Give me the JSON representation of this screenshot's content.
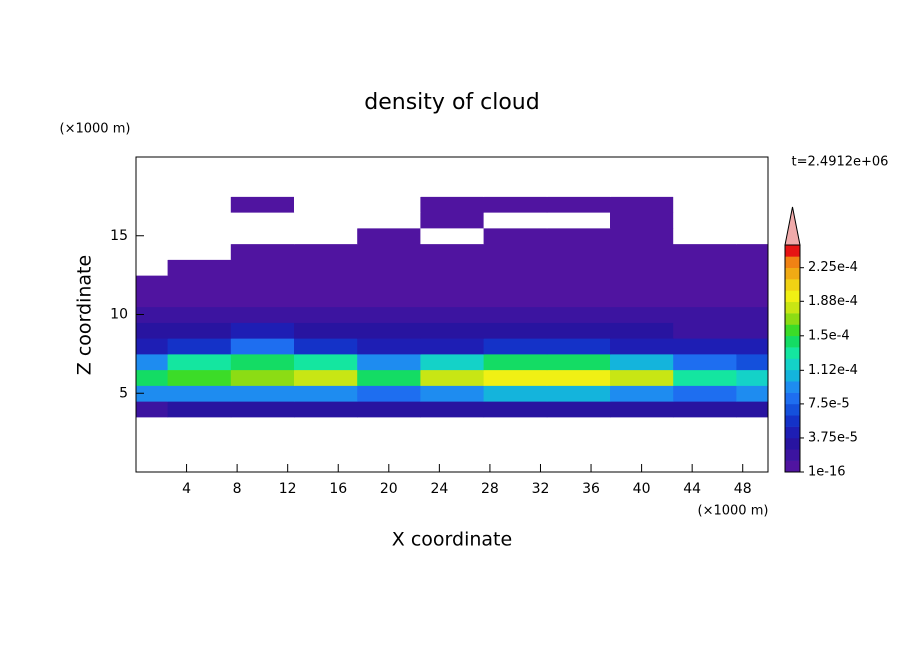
{
  "chart_data": {
    "type": "contour",
    "title": "density of cloud",
    "x_label": "X coordinate",
    "y_label": "Z coordinate",
    "x_unit": "(×1000 m)",
    "y_unit": "(×1000 m)",
    "annotation": "t=2.4912e+06",
    "xlim": [
      0,
      50
    ],
    "ylim": [
      0,
      20
    ],
    "xticks": [
      4,
      8,
      12,
      16,
      20,
      24,
      28,
      32,
      36,
      40,
      44,
      48
    ],
    "yticks": [
      5,
      10,
      15
    ],
    "x": [
      0,
      5,
      10,
      15,
      20,
      25,
      30,
      35,
      40,
      45,
      50
    ],
    "y": [
      0,
      1,
      2,
      3,
      4,
      5,
      6,
      7,
      8,
      9,
      10,
      11,
      12,
      13,
      14,
      15,
      16,
      17,
      18,
      19,
      20
    ],
    "z": [
      [
        0,
        0,
        0,
        0,
        0,
        0,
        0,
        0,
        0,
        0,
        0
      ],
      [
        0,
        0,
        0,
        0,
        0,
        0,
        0,
        0,
        0,
        0,
        0
      ],
      [
        0,
        0,
        0,
        0,
        0,
        0,
        0,
        0,
        0,
        0,
        0
      ],
      [
        0,
        0,
        0,
        0,
        0,
        0,
        0,
        0,
        0,
        0,
        0
      ],
      [
        2.5e-05,
        3e-05,
        3e-05,
        2.8e-05,
        3e-05,
        3.2e-05,
        3e-05,
        3e-05,
        2.8e-05,
        3e-05,
        2.8e-05
      ],
      [
        9e-05,
        0.0001,
        9e-05,
        9e-05,
        8e-05,
        0.0001,
        0.00011,
        0.00011,
        0.0001,
        8e-05,
        9e-05
      ],
      [
        0.00014,
        0.00016,
        0.00017,
        0.00018,
        0.00015,
        0.00018,
        0.00019,
        0.0002,
        0.00018,
        0.00013,
        0.00012
      ],
      [
        9e-05,
        0.00013,
        0.00015,
        0.00013,
        0.0001,
        0.00012,
        0.00014,
        0.00015,
        0.00011,
        8e-05,
        7e-05
      ],
      [
        5e-05,
        6e-05,
        8e-05,
        6e-05,
        5e-05,
        5e-05,
        6e-05,
        6e-05,
        5e-05,
        4e-05,
        4e-05
      ],
      [
        3e-05,
        3.5e-05,
        4e-05,
        3.5e-05,
        3e-05,
        3e-05,
        3e-05,
        3e-05,
        3e-05,
        2.5e-05,
        2.5e-05
      ],
      [
        2e-05,
        2e-05,
        2.2e-05,
        1.8e-05,
        1.5e-05,
        1.5e-05,
        1.5e-05,
        1.5e-05,
        1.5e-05,
        1.5e-05,
        2e-05
      ],
      [
        1e-05,
        1e-05,
        1e-05,
        1.2e-05,
        8e-06,
        8e-06,
        8e-06,
        8e-06,
        8e-06,
        8e-06,
        1e-05
      ],
      [
        5e-06,
        4e-06,
        5e-06,
        8e-06,
        5e-06,
        5e-06,
        5e-06,
        4e-06,
        4e-06,
        4e-06,
        5e-06
      ],
      [
        0,
        2e-06,
        2e-06,
        3e-06,
        2e-06,
        2e-06,
        2e-06,
        2e-06,
        2e-06,
        2e-06,
        2e-06
      ],
      [
        0,
        0,
        1e-06,
        2e-06,
        1e-06,
        1e-06,
        1e-06,
        1e-06,
        1e-06,
        1e-06,
        1e-06
      ],
      [
        0,
        0,
        0,
        0,
        1e-06,
        0,
        1e-06,
        1e-06,
        1e-06,
        0,
        0
      ],
      [
        0,
        0,
        0,
        0,
        0,
        1e-06,
        0,
        0,
        1e-06,
        0,
        0
      ],
      [
        0,
        0,
        1e-06,
        0,
        0,
        1e-06,
        1e-06,
        1e-06,
        1e-06,
        0,
        0
      ],
      [
        0,
        0,
        0,
        0,
        0,
        0,
        0,
        0,
        0,
        0,
        0
      ],
      [
        0,
        0,
        0,
        0,
        0,
        0,
        0,
        0,
        0,
        0,
        0
      ],
      [
        0,
        0,
        0,
        0,
        0,
        0,
        0,
        0,
        0,
        0,
        0
      ]
    ],
    "zlim": [
      1e-16,
      0.00025
    ],
    "zticks": [
      {
        "value": 1e-16,
        "label": "1e-16"
      },
      {
        "value": 3.75e-05,
        "label": "3.75e-5"
      },
      {
        "value": 7.5e-05,
        "label": "7.5e-5"
      },
      {
        "value": 0.000112,
        "label": "1.12e-4"
      },
      {
        "value": 0.00015,
        "label": "1.5e-4"
      },
      {
        "value": 0.000188,
        "label": "1.88e-4"
      },
      {
        "value": 0.000225,
        "label": "2.25e-4"
      }
    ],
    "colors": [
      "#5014a0",
      "#3c14a0",
      "#2814a0",
      "#1e1eb4",
      "#1432c8",
      "#1450dc",
      "#1e6ef0",
      "#1e8cf0",
      "#14b4dc",
      "#14d2c8",
      "#14e6a0",
      "#14dc64",
      "#3cdc28",
      "#8cdc14",
      "#c8e614",
      "#f0f014",
      "#f0d214",
      "#f0aa14",
      "#f08214",
      "#e61414"
    ],
    "extend_color": "#f0aaaa"
  }
}
